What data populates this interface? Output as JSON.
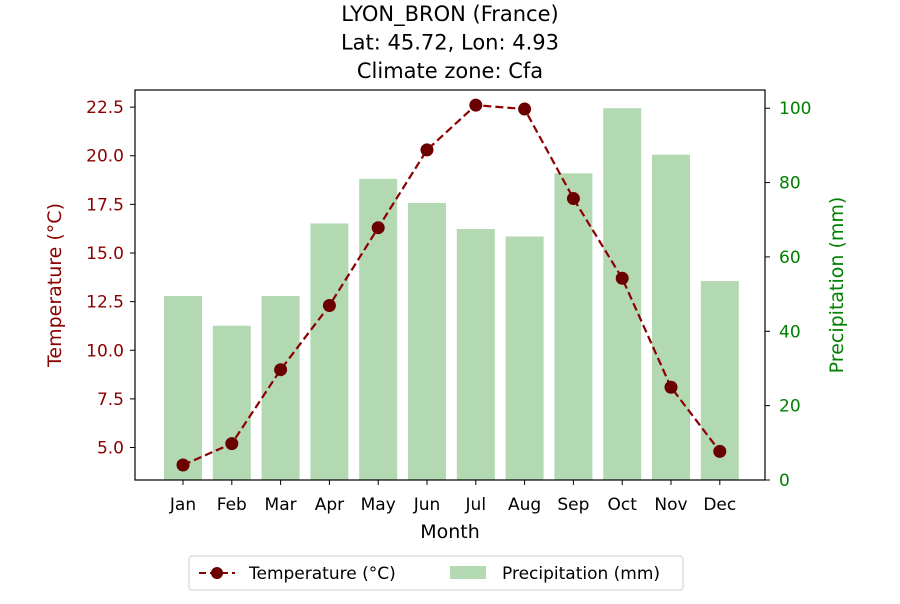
{
  "chart_data": {
    "type": "bar+line",
    "title_lines": [
      "LYON_BRON (France)",
      "Lat: 45.72, Lon: 4.93",
      "Climate zone: Cfa"
    ],
    "xlabel": "Month",
    "ylabel_left": "Temperature (°C)",
    "ylabel_right": "Precipitation (mm)",
    "categories": [
      "Jan",
      "Feb",
      "Mar",
      "Apr",
      "May",
      "Jun",
      "Jul",
      "Aug",
      "Sep",
      "Oct",
      "Nov",
      "Dec"
    ],
    "series": [
      {
        "name": "Temperature (°C)",
        "kind": "line",
        "axis": "left",
        "color": "#8b0000",
        "marker_color": "#6b0000",
        "values": [
          4.1,
          5.2,
          9.0,
          12.3,
          16.3,
          20.3,
          22.6,
          22.4,
          17.8,
          13.7,
          8.1,
          4.8
        ]
      },
      {
        "name": "Precipitation (mm)",
        "kind": "bar",
        "axis": "right",
        "color": "#b3d9b3",
        "values": [
          49.5,
          41.5,
          49.5,
          69,
          81,
          74.5,
          67.5,
          65.5,
          82.5,
          100,
          87.5,
          53.5
        ]
      }
    ],
    "ylim_left": [
      3.33,
      23.38
    ],
    "ylim_right": [
      0,
      104.9
    ],
    "yticks_left": [
      "5.0",
      "7.5",
      "10.0",
      "12.5",
      "15.0",
      "17.5",
      "20.0",
      "22.5"
    ],
    "yticks_right": [
      "0",
      "20",
      "40",
      "60",
      "80",
      "100"
    ],
    "left_axis_color": "#8b0000",
    "right_axis_color": "#008000",
    "grid": false,
    "legend_position": "bottom-center"
  }
}
